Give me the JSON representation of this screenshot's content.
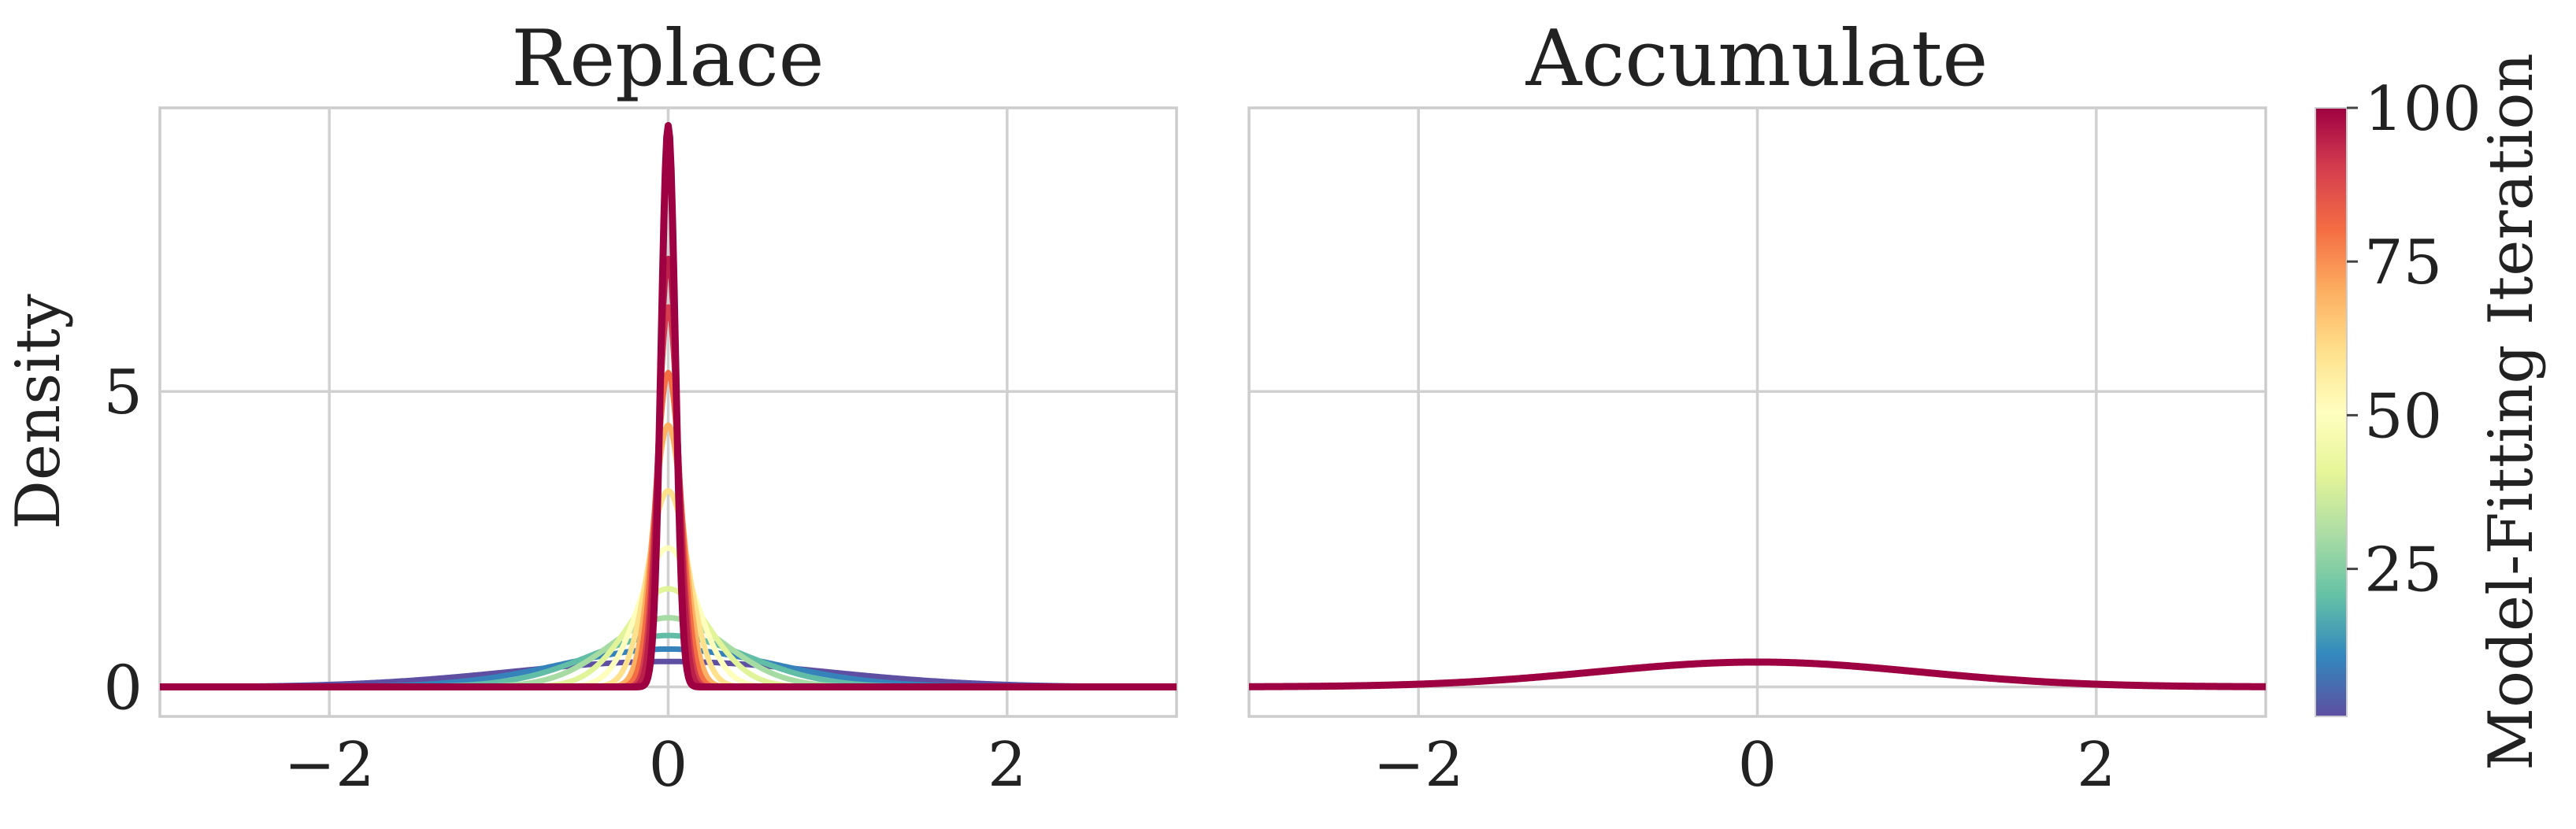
{
  "figure": {
    "ylabel": "Density",
    "colorbar": {
      "label": "Model-Fitting Iteration",
      "ticks": [
        100,
        75,
        50,
        25
      ],
      "range": [
        1,
        100
      ],
      "colormap": [
        "#5e4fa2",
        "#3288bd",
        "#66c2a5",
        "#abdda4",
        "#e6f598",
        "#ffffbf",
        "#fee08b",
        "#fdae61",
        "#f46d43",
        "#d53e4f",
        "#9e0142"
      ]
    }
  },
  "chart_data": [
    {
      "type": "line",
      "title": "Replace",
      "xlabel": "",
      "ylabel": "Density",
      "xlim": [
        -3,
        3
      ],
      "ylim": [
        -0.5,
        9.8
      ],
      "xticks": [
        -2,
        0,
        2
      ],
      "yticks": [
        0,
        5
      ],
      "grid": true,
      "legend": "none",
      "series": [
        {
          "iteration": 1,
          "distribution": "Gaussian kernel density centred at 0",
          "std": 0.92,
          "peak_density": 0.43
        },
        {
          "iteration": 10,
          "distribution": "Gaussian kernel density centred at 0",
          "std": 0.62,
          "peak_density": 0.64
        },
        {
          "iteration": 20,
          "distribution": "Gaussian kernel density centred at 0",
          "std": 0.46,
          "peak_density": 0.87
        },
        {
          "iteration": 30,
          "distribution": "Gaussian kernel density centred at 0",
          "std": 0.34,
          "peak_density": 1.17
        },
        {
          "iteration": 40,
          "distribution": "Gaussian kernel density centred at 0",
          "std": 0.24,
          "peak_density": 1.66
        },
        {
          "iteration": 50,
          "distribution": "Gaussian kernel density centred at 0",
          "std": 0.17,
          "peak_density": 2.35
        },
        {
          "iteration": 60,
          "distribution": "Gaussian kernel density centred at 0",
          "std": 0.12,
          "peak_density": 3.32
        },
        {
          "iteration": 70,
          "distribution": "Gaussian kernel density centred at 0",
          "std": 0.09,
          "peak_density": 4.43
        },
        {
          "iteration": 80,
          "distribution": "Gaussian kernel density centred at 0",
          "std": 0.075,
          "peak_density": 5.32
        },
        {
          "iteration": 90,
          "distribution": "Gaussian kernel density centred at 0",
          "std": 0.062,
          "peak_density": 6.43
        },
        {
          "iteration": 95,
          "distribution": "Gaussian kernel density centred at 0",
          "std": 0.055,
          "peak_density": 7.25
        },
        {
          "iteration": 100,
          "distribution": "Gaussian kernel density centred at 0",
          "std": 0.042,
          "peak_density": 9.5
        }
      ]
    },
    {
      "type": "line",
      "title": "Accumulate",
      "xlabel": "",
      "ylabel": "",
      "xlim": [
        -3,
        3
      ],
      "ylim": [
        -0.5,
        9.8
      ],
      "xticks": [
        -2,
        0,
        2
      ],
      "yticks": [
        0,
        5
      ],
      "grid": true,
      "legend": "none",
      "series": [
        {
          "iteration": 1,
          "distribution": "Gaussian kernel density centred at 0",
          "std": 0.95,
          "peak_density": 0.42
        },
        {
          "iteration": 50,
          "distribution": "Gaussian kernel density centred at 0",
          "std": 0.95,
          "peak_density": 0.42
        },
        {
          "iteration": 100,
          "distribution": "Gaussian kernel density centred at 0",
          "std": 0.95,
          "peak_density": 0.42
        }
      ]
    }
  ]
}
